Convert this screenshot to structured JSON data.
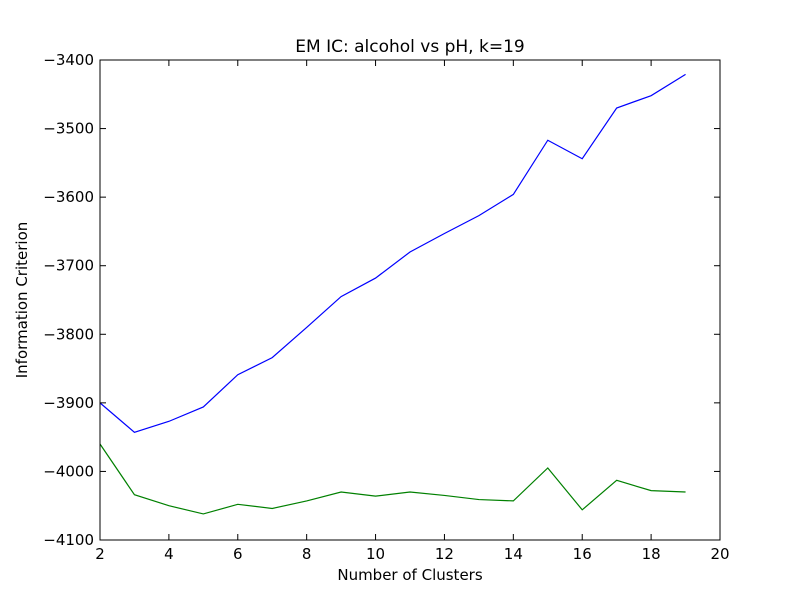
{
  "chart_data": {
    "type": "line",
    "title": "EM IC: alcohol vs pH, k=19",
    "xlabel": "Number of Clusters",
    "ylabel": "Information Criterion",
    "xlim": [
      2,
      20
    ],
    "ylim": [
      -4100,
      -3400
    ],
    "xticks": [
      2,
      4,
      6,
      8,
      10,
      12,
      14,
      16,
      18,
      20
    ],
    "yticks": [
      -4100,
      -4000,
      -3900,
      -3800,
      -3700,
      -3600,
      -3500,
      -3400
    ],
    "xtick_labels": [
      "2",
      "4",
      "6",
      "8",
      "10",
      "12",
      "14",
      "16",
      "18",
      "20"
    ],
    "ytick_labels": [
      "−4100",
      "−4000",
      "−3900",
      "−3800",
      "−3700",
      "−3600",
      "−3500",
      "−3400"
    ],
    "grid": false,
    "legend": null,
    "x": [
      2,
      3,
      4,
      5,
      6,
      7,
      8,
      9,
      10,
      11,
      12,
      13,
      14,
      15,
      16,
      17,
      18,
      19
    ],
    "series": [
      {
        "color": "#0000ff",
        "values": [
          -3900,
          -3943,
          -3927,
          -3906,
          -3859,
          -3834,
          -3790,
          -3745,
          -3718,
          -3680,
          -3653,
          -3627,
          -3596,
          -3517,
          -3544,
          -3470,
          -3452,
          -3421
        ]
      },
      {
        "color": "#008000",
        "values": [
          -3960,
          -4034,
          -4050,
          -4062,
          -4048,
          -4054,
          -4043,
          -4030,
          -4036,
          -4030,
          -4035,
          -4041,
          -4043,
          -3995,
          -4056,
          -4013,
          -4028,
          -4030
        ]
      }
    ]
  }
}
